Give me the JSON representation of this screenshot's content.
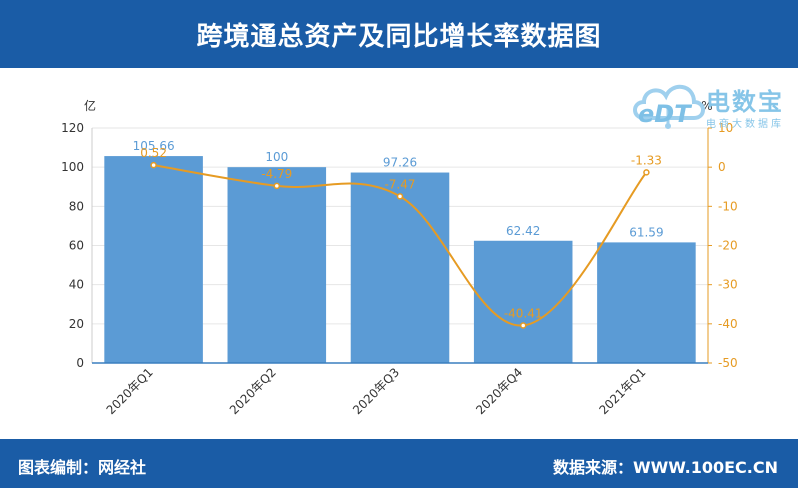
{
  "header": {
    "title": "跨境通总资产及同比增长率数据图"
  },
  "footer": {
    "left": "图表编制：网经社",
    "right": "数据来源：WWW.100EC.CN"
  },
  "logo": {
    "brand": "电数宝",
    "sub": "电商大数据库",
    "mark": "eDT",
    "icon": "cloud-icon"
  },
  "colors": {
    "header_bg": "#1a5ca6",
    "bar": "#5b9bd5",
    "line": "#e69b23",
    "bar_label": "#5b9bd5"
  },
  "chart_data": {
    "type": "bar",
    "categories": [
      "2020年Q1",
      "2020年Q2",
      "2020年Q3",
      "2020年Q4",
      "2021年Q1"
    ],
    "series": [
      {
        "type": "bar",
        "axis": "left",
        "values": [
          105.66,
          100,
          97.26,
          62.42,
          61.59
        ],
        "labels": [
          "105.66",
          "100",
          "97.26",
          "62.42",
          "61.59"
        ]
      },
      {
        "type": "line",
        "axis": "right",
        "values": [
          0.52,
          -4.79,
          -7.47,
          -40.41,
          -1.33
        ],
        "labels": [
          "0.52",
          "-4.79",
          "-7.47",
          "-40.41",
          "-1.33"
        ]
      }
    ],
    "ylabel_left": "亿",
    "ylabel_right": "%",
    "ylim_left": [
      0,
      120
    ],
    "yticks_left": [
      0,
      20,
      40,
      60,
      80,
      100,
      120
    ],
    "ylim_right": [
      -50,
      10
    ],
    "yticks_right": [
      -50,
      -40,
      -30,
      -20,
      -10,
      0,
      10
    ],
    "grid": true
  }
}
